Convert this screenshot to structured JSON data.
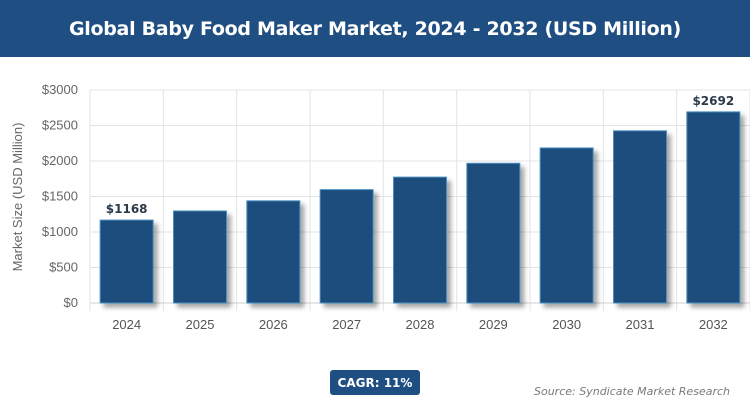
{
  "header": {
    "title": "Global Baby Food Maker Market, 2024 - 2032 (USD Million)"
  },
  "chart_data": {
    "type": "bar",
    "title": "Global Baby Food Maker Market, 2024 - 2032 (USD Million)",
    "xlabel": "",
    "ylabel": "Market Size (USD Million)",
    "categories": [
      "2024",
      "2025",
      "2026",
      "2027",
      "2028",
      "2029",
      "2030",
      "2031",
      "2032"
    ],
    "values": [
      1168,
      1296,
      1439,
      1597,
      1773,
      1968,
      2184,
      2425,
      2692
    ],
    "data_labels": {
      "0": "$1168",
      "8": "$2692"
    },
    "ylim": [
      0,
      3000
    ],
    "yticks": [
      0,
      500,
      1000,
      1500,
      2000,
      2500,
      3000
    ],
    "ytick_labels": [
      "$0",
      "$500",
      "$1000",
      "$1500",
      "$2000",
      "$2500",
      "$3000"
    ],
    "grid": true,
    "bar_color": "#1f4e7d",
    "bar_edge_color": "#4a90c2"
  },
  "badge": {
    "cagr": "CAGR: 11%"
  },
  "footer": {
    "source": "Source: Syndicate Market Research"
  }
}
